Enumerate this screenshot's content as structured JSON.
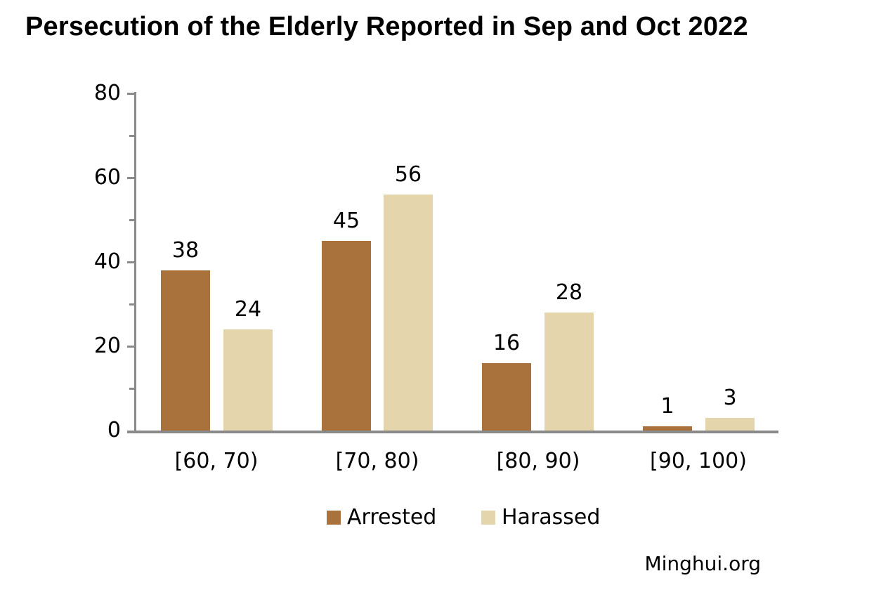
{
  "source": "Minghui.org",
  "colors": {
    "arrested": "#A9713C",
    "harassed": "#E5D5AC",
    "axis": "#8A8A8A",
    "text": "#000000",
    "background": "#FFFFFF"
  },
  "chart_data": {
    "type": "bar",
    "title": "Persecution of the Elderly Reported in Sep and Oct 2022",
    "categories": [
      "[60, 70)",
      "[70, 80)",
      "[80, 90)",
      "[90, 100)"
    ],
    "series": [
      {
        "name": "Arrested",
        "color": "#A9713C",
        "values": [
          38,
          45,
          16,
          1
        ]
      },
      {
        "name": "Harassed",
        "color": "#E5D5AC",
        "values": [
          24,
          56,
          28,
          3
        ]
      }
    ],
    "xlabel": "",
    "ylabel": "",
    "ylim": [
      0,
      80
    ],
    "yticks_major": [
      0,
      20,
      40,
      60,
      80
    ],
    "yticks_minor": [
      10,
      30,
      50,
      70
    ],
    "bar_value_labels": true,
    "grid": false,
    "legend_position": "bottom",
    "source_note": "Minghui.org"
  }
}
